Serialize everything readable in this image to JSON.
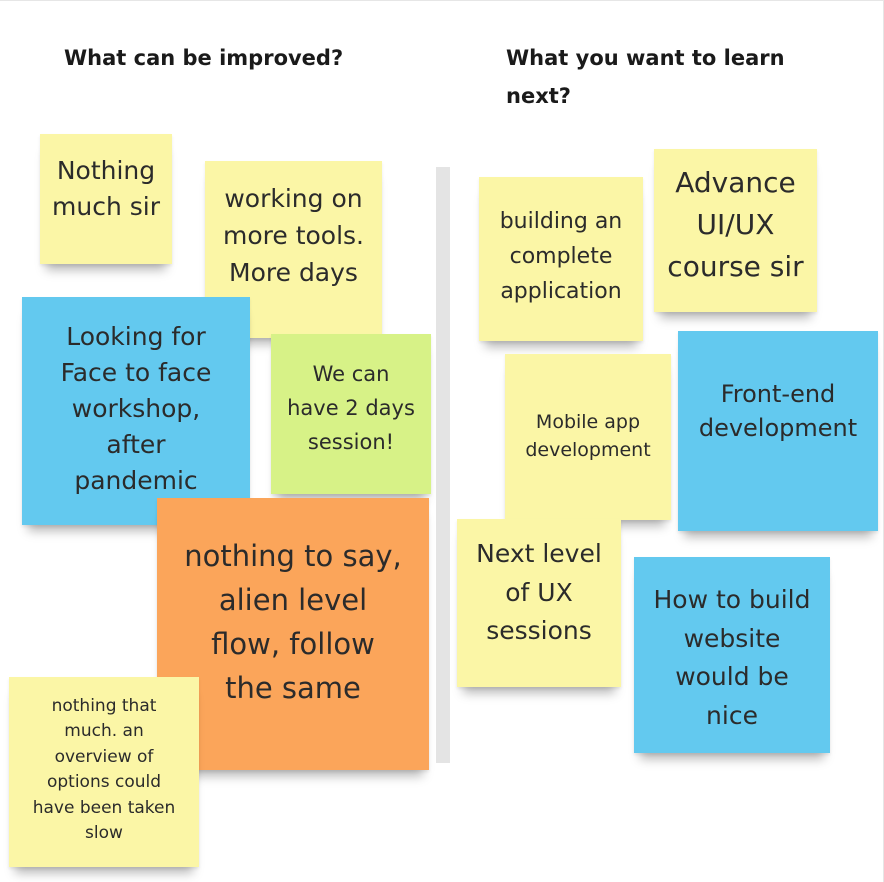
{
  "columns": {
    "left": {
      "heading": "What can be improved?"
    },
    "right": {
      "heading": "What you want to learn\nnext?"
    }
  },
  "notes": {
    "nothing_much": {
      "text": "Nothing\nmuch sir",
      "color": "#fbf6a6"
    },
    "more_tools": {
      "text": "working on\nmore tools.\nMore days",
      "color": "#fbf6a6"
    },
    "face_to_face": {
      "text": "Looking for\nFace to face\nworkshop,\nafter\npandemic",
      "color": "#63c9ef"
    },
    "two_days": {
      "text": "We can\nhave 2 days\nsession!",
      "color": "#d7f287"
    },
    "alien_level": {
      "text": "nothing to say,\nalien level\nflow, follow\nthe same",
      "color": "#fba55a"
    },
    "nothing_that_much": {
      "text": "nothing that\nmuch.  an\noverview of\noptions could\nhave been taken\nslow",
      "color": "#fbf6a6"
    },
    "building_app": {
      "text": "building an\ncomplete\napplication",
      "color": "#fbf6a6"
    },
    "advance_uiux": {
      "text": "Advance\nUI/UX\ncourse sir",
      "color": "#fbf6a6"
    },
    "mobile_app": {
      "text": "Mobile app\ndevelopment",
      "color": "#fbf6a6"
    },
    "frontend": {
      "text": "Front-end\ndevelopment",
      "color": "#63c9ef"
    },
    "next_level_ux": {
      "text": "Next level\nof UX\nsessions",
      "color": "#fbf6a6"
    },
    "build_website": {
      "text": "How to build\nwebsite\nwould be\nnice",
      "color": "#63c9ef"
    }
  }
}
